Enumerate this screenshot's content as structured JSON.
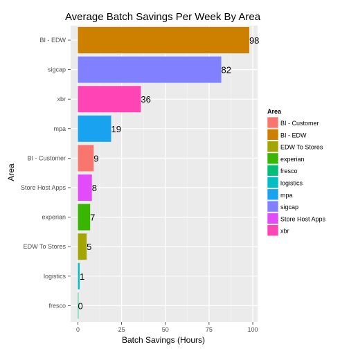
{
  "chart_data": {
    "type": "bar",
    "orientation": "horizontal",
    "title": "Average Batch Savings Per Week By Area",
    "xlabel": "Batch Savings (Hours)",
    "ylabel": "Area",
    "xlim": [
      0,
      100
    ],
    "x_ticks": [
      0,
      25,
      50,
      75,
      100
    ],
    "grid": true,
    "legend_placement": "right",
    "categories": [
      "BI - EDW",
      "sigcap",
      "xbr",
      "mpa",
      "BI - Customer",
      "Store Host Apps",
      "experian",
      "EDW To Stores",
      "logistics",
      "fresco"
    ],
    "values": [
      98,
      82,
      36,
      19,
      9,
      8,
      7,
      5,
      1,
      0
    ],
    "data_labels": [
      "98",
      "82",
      "36",
      "19",
      "9",
      "8",
      "7",
      "5",
      "1",
      "0"
    ],
    "bar_colors": [
      "#CD7F00",
      "#8180FF",
      "#FF45B6",
      "#18A2F0",
      "#F8766D",
      "#E14BF9",
      "#39B600",
      "#A3A500",
      "#00BFC4",
      "#00BE75"
    ],
    "legend": {
      "title": "Area",
      "entries": [
        {
          "label": "BI - Customer",
          "color": "#F8766D"
        },
        {
          "label": "BI - EDW",
          "color": "#CD7F00"
        },
        {
          "label": "EDW To Stores",
          "color": "#A3A500"
        },
        {
          "label": "experian",
          "color": "#39B600"
        },
        {
          "label": "fresco",
          "color": "#00BE75"
        },
        {
          "label": "logistics",
          "color": "#00BFC4"
        },
        {
          "label": "mpa",
          "color": "#18A2F0"
        },
        {
          "label": "sigcap",
          "color": "#8180FF"
        },
        {
          "label": "Store Host Apps",
          "color": "#E14BF9"
        },
        {
          "label": "xbr",
          "color": "#FF45B6"
        }
      ]
    }
  }
}
